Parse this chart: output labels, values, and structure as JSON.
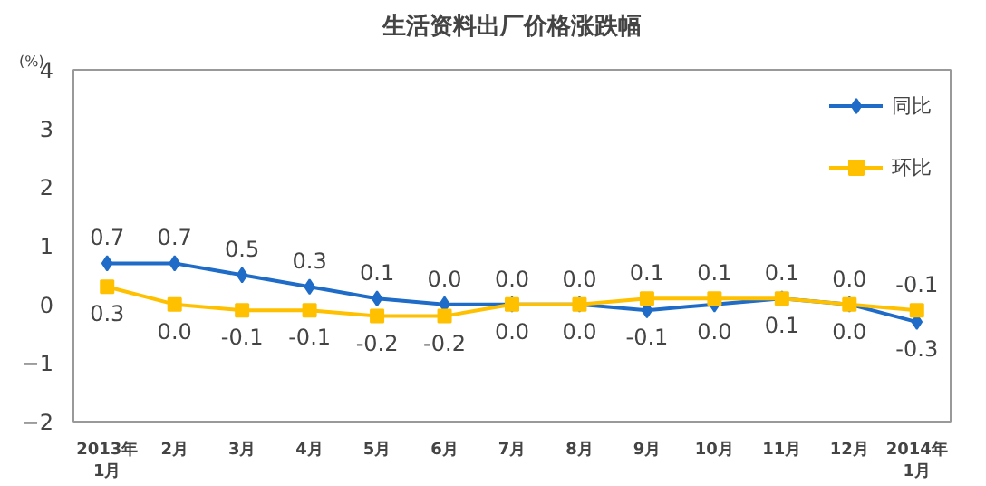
{
  "chart_data": {
    "type": "line",
    "title": "生活资料出厂价格涨跌幅",
    "ylabel": "(%)",
    "categories": [
      "2013年\n1月",
      "2月",
      "3月",
      "4月",
      "5月",
      "6月",
      "7月",
      "8月",
      "9月",
      "10月",
      "11月",
      "12月",
      "2014年\n1月"
    ],
    "series": [
      {
        "name": "同比",
        "color": "#1f6cc8",
        "marker": "diamond",
        "values": [
          0.7,
          0.7,
          0.5,
          0.3,
          0.1,
          0.0,
          0.0,
          0.0,
          -0.1,
          0.0,
          0.1,
          0.0,
          -0.3
        ],
        "value_labels": [
          "0.7",
          "0.7",
          "0.5",
          "0.3",
          "0.1",
          "0.0",
          "0.0",
          "0.0",
          "-0.1",
          "0.0",
          "0.1",
          "0.0",
          "-0.3"
        ]
      },
      {
        "name": "环比",
        "color": "#ffc000",
        "marker": "square",
        "values": [
          0.3,
          0.0,
          -0.1,
          -0.1,
          -0.2,
          -0.2,
          0.0,
          0.0,
          0.1,
          0.1,
          0.1,
          0.0,
          -0.1
        ],
        "value_labels": [
          "0.3",
          "0.0",
          "-0.1",
          "-0.1",
          "-0.2",
          "-0.2",
          "0.0",
          "0.0",
          "0.1",
          "0.1",
          "0.1",
          "0.0",
          "-0.1"
        ]
      }
    ],
    "ylim": [
      -2,
      4
    ],
    "yticks": [
      -2,
      -1,
      0,
      1,
      2,
      3,
      4
    ],
    "grid": false,
    "legend": "top right",
    "line_style": "solid"
  }
}
